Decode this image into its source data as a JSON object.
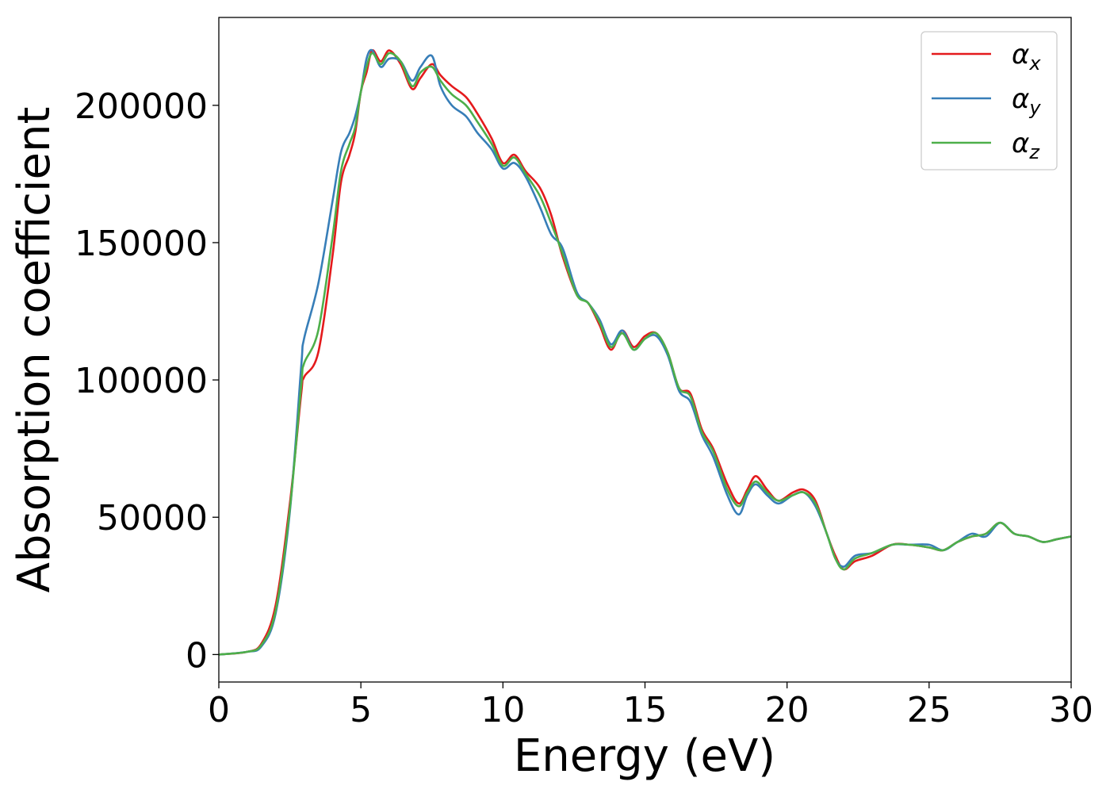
{
  "chart_data": {
    "type": "line",
    "title": "",
    "xlabel": "Energy (eV)",
    "ylabel": "Absorption coefficient",
    "xlim": [
      0,
      30
    ],
    "ylim": [
      -10000,
      232000
    ],
    "xticks": [
      0,
      5,
      10,
      15,
      20,
      25,
      30
    ],
    "xtick_labels": [
      "0",
      "5",
      "10",
      "15",
      "20",
      "25",
      "30"
    ],
    "yticks": [
      0,
      50000,
      100000,
      150000,
      200000
    ],
    "ytick_labels": [
      "0",
      "50000",
      "100000",
      "150000",
      "200000"
    ],
    "grid": false,
    "legend_position": "top-right",
    "series": [
      {
        "name": "αx",
        "legend_base": "α",
        "legend_sub": "x",
        "color": "#e41a1c",
        "x": [
          0,
          1.0,
          1.5,
          2.0,
          2.5,
          2.9,
          3.0,
          3.5,
          4.0,
          4.3,
          4.6,
          4.8,
          5.0,
          5.2,
          5.4,
          5.7,
          6.0,
          6.4,
          6.8,
          7.1,
          7.5,
          7.8,
          8.2,
          8.7,
          9.1,
          9.6,
          10.0,
          10.4,
          10.8,
          11.3,
          11.7,
          12.1,
          12.6,
          13.0,
          13.4,
          13.8,
          14.2,
          14.6,
          15.0,
          15.4,
          15.8,
          16.2,
          16.6,
          17.0,
          17.4,
          17.9,
          18.3,
          18.6,
          18.9,
          19.3,
          19.7,
          20.2,
          20.6,
          21.0,
          21.4,
          21.7,
          22.0,
          22.4,
          23.0,
          23.7,
          24.3,
          25.0,
          25.5,
          26.0,
          26.5,
          27.0,
          27.5,
          28.0,
          28.5,
          29.0,
          29.5,
          30.0
        ],
        "values": [
          0,
          1000,
          4000,
          18000,
          55000,
          95000,
          101000,
          110000,
          145000,
          172000,
          182000,
          190000,
          205000,
          212000,
          220000,
          216000,
          220000,
          215000,
          206000,
          210000,
          215000,
          211000,
          207000,
          203000,
          197000,
          188000,
          179000,
          182000,
          176000,
          170000,
          160000,
          145000,
          131000,
          128000,
          120000,
          111000,
          118000,
          112000,
          116000,
          117000,
          110000,
          97000,
          95000,
          82000,
          75000,
          62000,
          55000,
          60000,
          65000,
          60000,
          56000,
          59000,
          60000,
          56000,
          44000,
          36000,
          31000,
          34000,
          36000,
          40000,
          40000,
          39000,
          38000,
          41000,
          43000,
          44000,
          48000,
          44000,
          43000,
          41000,
          42000,
          43000
        ]
      },
      {
        "name": "αy",
        "legend_base": "α",
        "legend_sub": "y",
        "color": "#377eb8",
        "x": [
          0,
          1.0,
          1.5,
          2.0,
          2.5,
          2.9,
          3.0,
          3.5,
          4.0,
          4.3,
          4.6,
          4.8,
          5.0,
          5.2,
          5.4,
          5.7,
          6.0,
          6.4,
          6.8,
          7.1,
          7.5,
          7.8,
          8.2,
          8.7,
          9.1,
          9.6,
          10.0,
          10.4,
          10.8,
          11.3,
          11.7,
          12.1,
          12.6,
          13.0,
          13.4,
          13.8,
          14.2,
          14.6,
          15.0,
          15.4,
          15.8,
          16.2,
          16.6,
          17.0,
          17.4,
          17.9,
          18.3,
          18.6,
          18.9,
          19.3,
          19.7,
          20.2,
          20.6,
          21.0,
          21.4,
          21.7,
          22.0,
          22.4,
          23.0,
          23.7,
          24.3,
          25.0,
          25.5,
          26.0,
          26.5,
          27.0,
          27.5,
          28.0,
          28.5,
          29.0,
          29.5,
          30.0
        ],
        "values": [
          0,
          1000,
          3000,
          15000,
          52000,
          105000,
          115000,
          135000,
          165000,
          183000,
          190000,
          196000,
          205000,
          217000,
          220000,
          214000,
          217000,
          216000,
          209000,
          214000,
          218000,
          207000,
          200000,
          196000,
          190000,
          184000,
          177000,
          179000,
          174000,
          163000,
          153000,
          148000,
          132000,
          128000,
          122000,
          113000,
          118000,
          111000,
          115000,
          116000,
          109000,
          96000,
          92000,
          80000,
          72000,
          58000,
          51000,
          58000,
          62000,
          58000,
          55000,
          58000,
          59000,
          54000,
          44000,
          35000,
          32000,
          36000,
          37000,
          40000,
          40000,
          40000,
          38000,
          41000,
          44000,
          43000,
          48000,
          44000,
          43000,
          41000,
          42000,
          43000
        ]
      },
      {
        "name": "αz",
        "legend_base": "α",
        "legend_sub": "z",
        "color": "#4daf4a",
        "x": [
          0,
          1.0,
          1.5,
          2.0,
          2.5,
          2.9,
          3.0,
          3.5,
          4.0,
          4.3,
          4.6,
          4.8,
          5.0,
          5.2,
          5.4,
          5.7,
          6.0,
          6.4,
          6.8,
          7.1,
          7.5,
          7.8,
          8.2,
          8.7,
          9.1,
          9.6,
          10.0,
          10.4,
          10.8,
          11.3,
          11.7,
          12.1,
          12.6,
          13.0,
          13.4,
          13.8,
          14.2,
          14.6,
          15.0,
          15.4,
          15.8,
          16.2,
          16.6,
          17.0,
          17.4,
          17.9,
          18.3,
          18.6,
          18.9,
          19.3,
          19.7,
          20.2,
          20.6,
          21.0,
          21.4,
          21.7,
          22.0,
          22.4,
          23.0,
          23.7,
          24.3,
          25.0,
          25.5,
          26.0,
          26.5,
          27.0,
          27.5,
          28.0,
          28.5,
          29.0,
          29.5,
          30.0
        ],
        "values": [
          0,
          1000,
          3500,
          16000,
          53000,
          98000,
          106000,
          118000,
          152000,
          176000,
          186000,
          192000,
          205000,
          214000,
          219000,
          215000,
          219000,
          216000,
          207000,
          212000,
          214000,
          209000,
          204000,
          200000,
          194000,
          186000,
          178000,
          181000,
          175000,
          167000,
          157000,
          146000,
          131000,
          128000,
          121000,
          112000,
          117000,
          111000,
          115000,
          117000,
          110000,
          97000,
          94000,
          81000,
          74000,
          60000,
          54000,
          59000,
          63000,
          59000,
          56000,
          58000,
          59000,
          55000,
          44000,
          35000,
          31000,
          35000,
          37000,
          40000,
          40000,
          39000,
          38000,
          41000,
          43000,
          44000,
          48000,
          44000,
          43000,
          41000,
          42000,
          43000
        ]
      }
    ]
  }
}
